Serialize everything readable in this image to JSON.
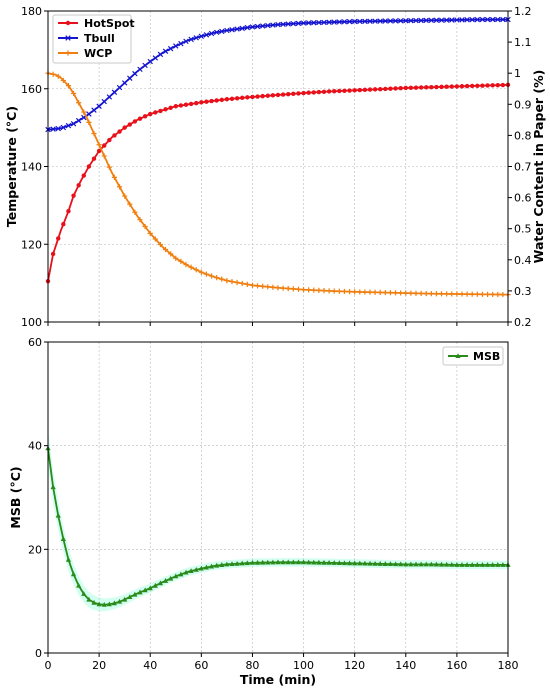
{
  "chart_data": [
    {
      "type": "line",
      "title": "",
      "xlabel": "",
      "ylabel": "Temperature (°C)",
      "y2label": "Water Content in Paper (%)",
      "xlim": [
        0,
        180
      ],
      "ylim": [
        100,
        180
      ],
      "y2lim": [
        0.2,
        1.2
      ],
      "xticks": [
        0,
        20,
        40,
        60,
        80,
        100,
        120,
        140,
        160,
        180
      ],
      "yticks": [
        100,
        120,
        140,
        160,
        180
      ],
      "y2ticks": [
        0.2,
        0.3,
        0.4,
        0.5,
        0.6,
        0.7,
        0.8,
        0.9,
        1.0,
        1.1,
        1.2
      ],
      "grid": true,
      "legend": "top-left",
      "series": [
        {
          "name": "HotSpot",
          "axis": "left",
          "color": "#e8101a",
          "marker": "dot",
          "x": [
            0,
            2,
            5,
            8,
            10,
            13,
            16,
            20,
            25,
            30,
            35,
            40,
            50,
            60,
            70,
            80,
            90,
            100,
            110,
            120,
            130,
            140,
            150,
            160,
            170,
            180
          ],
          "y": [
            110.5,
            117.5,
            123.5,
            128.5,
            132.5,
            136.5,
            140,
            144,
            147.5,
            150,
            152,
            153.5,
            155.5,
            156.5,
            157.3,
            157.9,
            158.4,
            158.9,
            159.3,
            159.6,
            159.9,
            160.2,
            160.4,
            160.6,
            160.8,
            161
          ]
        },
        {
          "name": "Tbull",
          "axis": "left",
          "color": "#1515d0",
          "marker": "x",
          "x": [
            0,
            5,
            10,
            15,
            20,
            25,
            30,
            35,
            40,
            45,
            50,
            55,
            60,
            65,
            70,
            80,
            90,
            100,
            110,
            120,
            130,
            140,
            150,
            160,
            170,
            180
          ],
          "y": [
            149.5,
            149.8,
            151,
            153,
            155.5,
            158.5,
            161.5,
            164.5,
            167,
            169.3,
            171,
            172.5,
            173.5,
            174.4,
            175,
            175.9,
            176.5,
            176.9,
            177.1,
            177.3,
            177.4,
            177.5,
            177.6,
            177.7,
            177.8,
            177.8
          ]
        },
        {
          "name": "WCP",
          "axis": "right",
          "color": "#f07f10",
          "marker": "plus",
          "x": [
            0,
            3,
            5,
            8,
            10,
            15,
            20,
            25,
            30,
            35,
            40,
            45,
            50,
            55,
            60,
            65,
            70,
            80,
            90,
            100,
            110,
            120,
            130,
            140,
            150,
            160,
            170,
            180
          ],
          "y": [
            1.0,
            0.995,
            0.985,
            0.96,
            0.935,
            0.86,
            0.77,
            0.68,
            0.605,
            0.54,
            0.485,
            0.44,
            0.405,
            0.38,
            0.36,
            0.345,
            0.333,
            0.318,
            0.31,
            0.304,
            0.3,
            0.297,
            0.295,
            0.293,
            0.291,
            0.29,
            0.289,
            0.288
          ]
        }
      ]
    },
    {
      "type": "line",
      "title": "",
      "xlabel": "Time (min)",
      "ylabel": "MSB (°C)",
      "xlim": [
        0,
        180
      ],
      "ylim": [
        0,
        60
      ],
      "xticks": [
        0,
        20,
        40,
        60,
        80,
        100,
        120,
        140,
        160,
        180
      ],
      "yticks": [
        0,
        20,
        40,
        60
      ],
      "grid": true,
      "legend": "top-right",
      "series": [
        {
          "name": "MSB",
          "color": "#2a8a1a",
          "band_color": "#7fffd4",
          "marker": "triangle",
          "x": [
            0,
            2,
            4,
            6,
            8,
            10,
            12,
            14,
            16,
            18,
            20,
            22,
            24,
            26,
            28,
            30,
            32,
            35,
            40,
            45,
            50,
            55,
            60,
            65,
            70,
            80,
            90,
            100,
            110,
            120,
            130,
            140,
            150,
            160,
            170,
            180
          ],
          "y": [
            39.5,
            32,
            26.5,
            22,
            18,
            15.2,
            13,
            11.4,
            10.3,
            9.7,
            9.4,
            9.3,
            9.4,
            9.6,
            9.9,
            10.3,
            10.8,
            11.5,
            12.5,
            13.7,
            14.8,
            15.7,
            16.3,
            16.8,
            17.1,
            17.4,
            17.5,
            17.5,
            17.4,
            17.3,
            17.2,
            17.1,
            17.1,
            17.0,
            17.0,
            17.0
          ]
        }
      ]
    }
  ]
}
